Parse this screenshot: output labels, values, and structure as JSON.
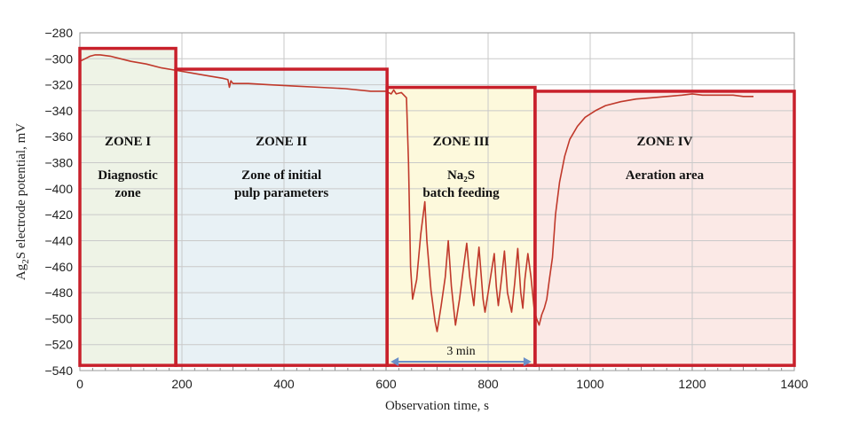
{
  "chart_data": {
    "type": "line",
    "xlabel": "Observation time, s",
    "ylabel_parts": [
      "Ag",
      "2",
      "S electrode potential, mV"
    ],
    "xlim": [
      0,
      1400
    ],
    "ylim": [
      -540,
      -280
    ],
    "xticks": [
      0,
      200,
      400,
      600,
      800,
      1000,
      1200,
      1400
    ],
    "yticks": [
      -280,
      -300,
      -320,
      -340,
      -360,
      -380,
      -400,
      -420,
      -440,
      -460,
      -480,
      -500,
      -520,
      -540
    ],
    "grid": true,
    "colors": {
      "line": "#c0392b",
      "border": "#c8202b",
      "arrow": "#6a8fc8"
    },
    "zones": [
      {
        "title": "ZONE I",
        "lines": [
          "Diagnostic",
          "zone"
        ],
        "x_range": [
          0,
          188
        ],
        "top_value": -292,
        "fill": "#eef3e6"
      },
      {
        "title": "ZONE II",
        "lines": [
          "Zone of initial",
          "pulp parameters"
        ],
        "x_range": [
          188,
          602
        ],
        "top_value": -308,
        "fill": "#e8f1f5"
      },
      {
        "title": "ZONE III",
        "lines": [
          "Na₂S",
          "batch feeding"
        ],
        "x_range": [
          602,
          892
        ],
        "top_value": -322,
        "fill": "#fdf9dc"
      },
      {
        "title": "ZONE IV",
        "lines": [
          "Aeration area"
        ],
        "x_range": [
          892,
          1400
        ],
        "top_value": -325,
        "fill": "#fbe9e6"
      }
    ],
    "annotation": {
      "label": "3 min",
      "x_range": [
        602,
        892
      ],
      "y": -527
    },
    "series": [
      {
        "x": [
          0,
          10,
          20,
          30,
          40,
          60,
          80,
          100,
          130,
          160,
          190,
          220,
          250,
          280,
          290,
          293,
          296,
          300,
          330,
          370,
          420,
          470,
          520,
          570,
          600,
          610,
          615,
          620,
          630,
          635,
          640,
          644,
          648,
          652,
          660,
          668,
          676,
          680,
          688,
          696,
          700,
          708,
          716,
          722,
          728,
          736,
          744,
          752,
          758,
          764,
          772,
          776,
          782,
          786,
          790,
          794,
          800,
          808,
          812,
          816,
          820,
          826,
          832,
          838,
          846,
          852,
          858,
          864,
          868,
          872,
          878,
          884,
          890,
          895,
          900,
          905,
          910,
          915,
          920,
          926,
          932,
          940,
          950,
          960,
          975,
          990,
          1010,
          1030,
          1060,
          1090,
          1120,
          1150,
          1180,
          1200,
          1220,
          1250,
          1280,
          1300,
          1320
        ],
        "y": [
          -302,
          -300,
          -298,
          -297,
          -297,
          -298,
          -300,
          -302,
          -304,
          -307,
          -309,
          -311,
          -313,
          -315,
          -316,
          -322,
          -317,
          -319,
          -319,
          -320,
          -321,
          -322,
          -323,
          -325,
          -325,
          -327,
          -324,
          -327,
          -326,
          -328,
          -330,
          -380,
          -460,
          -485,
          -470,
          -435,
          -410,
          -440,
          -478,
          -502,
          -510,
          -490,
          -468,
          -440,
          -475,
          -505,
          -485,
          -460,
          -442,
          -468,
          -490,
          -470,
          -445,
          -465,
          -485,
          -495,
          -480,
          -460,
          -450,
          -475,
          -490,
          -470,
          -448,
          -480,
          -495,
          -473,
          -446,
          -480,
          -492,
          -470,
          -450,
          -468,
          -492,
          -500,
          -505,
          -497,
          -492,
          -485,
          -470,
          -453,
          -420,
          -395,
          -375,
          -362,
          -352,
          -345,
          -340,
          -336,
          -333,
          -331,
          -330,
          -329,
          -328,
          -327,
          -328,
          -328,
          -328,
          -329,
          -329
        ]
      }
    ]
  }
}
